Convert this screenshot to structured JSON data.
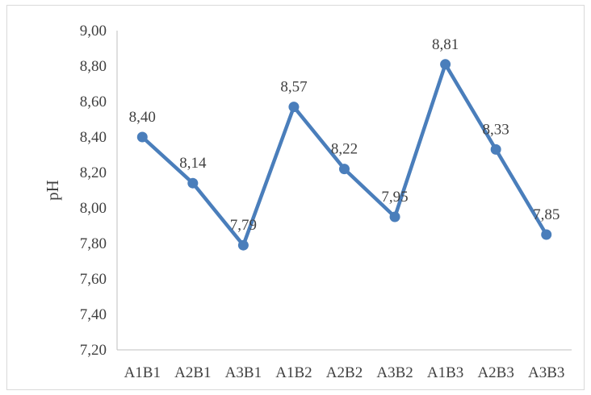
{
  "chart_data": {
    "type": "line",
    "categories": [
      "A1B1",
      "A2B1",
      "A3B1",
      "A1B2",
      "A2B2",
      "A3B2",
      "A1B3",
      "A2B3",
      "A3B3"
    ],
    "series": [
      {
        "values": [
          8.4,
          8.14,
          7.79,
          8.57,
          8.22,
          7.95,
          8.81,
          8.33,
          7.85
        ],
        "data_labels": [
          "8,40",
          "8,14",
          "7,79",
          "8,57",
          "8,22",
          "7,95",
          "8,81",
          "8,33",
          "7,85"
        ]
      }
    ],
    "title": "",
    "xlabel": "",
    "ylabel": "pH",
    "ylim": [
      7.2,
      9.0
    ],
    "y_ticks": [
      "7,20",
      "7,40",
      "7,60",
      "7,80",
      "8,00",
      "8,20",
      "8,40",
      "8,60",
      "8,80",
      "9,00"
    ],
    "grid": false,
    "legend": "none",
    "colors": {
      "series": "#4a7ebb",
      "axis": "#bfbfbf",
      "text": "#404040"
    }
  }
}
